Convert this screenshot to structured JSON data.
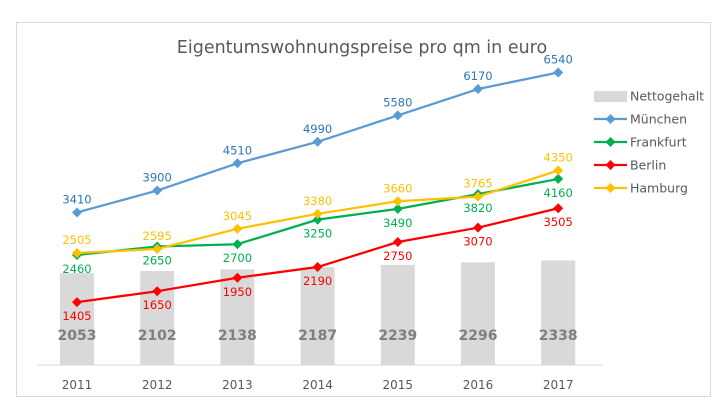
{
  "chart_data": {
    "type": "bar+line",
    "title": "Eigentumswohnungspreise pro qm in euro",
    "xlabel": "",
    "ylabel": "",
    "ylim": [
      0,
      8100
    ],
    "grid": false,
    "legend_position": "right",
    "categories": [
      "2011",
      "2012",
      "2013",
      "2014",
      "2015",
      "2016",
      "2017"
    ],
    "bars": {
      "name": "Nettogehalt",
      "color": "#d9d9d9",
      "label_color": "#7f7f7f",
      "values": [
        2053,
        2102,
        2138,
        2187,
        2239,
        2296,
        2338
      ]
    },
    "series": [
      {
        "name": "München",
        "color": "#5b9bd5",
        "label_color": "#2e75b6",
        "label_pos": "above",
        "values": [
          3410,
          3900,
          4510,
          4990,
          5580,
          6170,
          6540
        ]
      },
      {
        "name": "Frankfurt",
        "color": "#00b050",
        "label_color": "#00b050",
        "label_pos": "below",
        "values": [
          2460,
          2650,
          2700,
          3250,
          3490,
          3820,
          4160
        ]
      },
      {
        "name": "Berlin",
        "color": "#ff0000",
        "label_color": "#ff0000",
        "label_pos": "below",
        "values": [
          1405,
          1650,
          1950,
          2190,
          2750,
          3070,
          3505
        ]
      },
      {
        "name": "Hamburg",
        "color": "#ffc000",
        "label_color": "#ffc000",
        "label_pos": "above",
        "values": [
          2505,
          2595,
          3045,
          3380,
          3660,
          3765,
          4350
        ]
      }
    ]
  }
}
